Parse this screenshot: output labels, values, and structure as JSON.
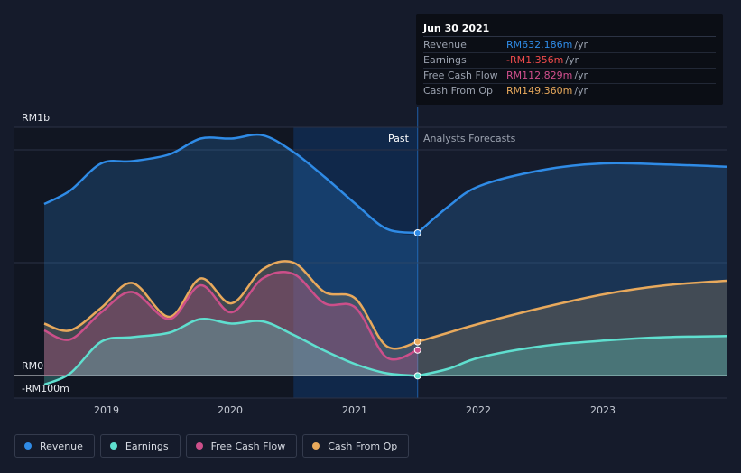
{
  "tooltip": {
    "date": "Jun 30 2021",
    "rows": [
      {
        "label": "Revenue",
        "value": "RM632.186m",
        "unit": "/yr",
        "color": "#2f8be6"
      },
      {
        "label": "Earnings",
        "value": "-RM1.356m",
        "unit": "/yr",
        "color": "#ef4b4b"
      },
      {
        "label": "Free Cash Flow",
        "value": "RM112.829m",
        "unit": "/yr",
        "color": "#d04f8c"
      },
      {
        "label": "Cash From Op",
        "value": "RM149.360m",
        "unit": "/yr",
        "color": "#e8a95c"
      }
    ]
  },
  "regions": {
    "past": "Past",
    "forecast": "Analysts Forecasts"
  },
  "legend": [
    {
      "label": "Revenue",
      "color": "#2f8be6"
    },
    {
      "label": "Earnings",
      "color": "#5fdfcf"
    },
    {
      "label": "Free Cash Flow",
      "color": "#cc4f8a"
    },
    {
      "label": "Cash From Op",
      "color": "#e8a95c"
    }
  ],
  "chart_data": {
    "type": "area",
    "y_tick_labels": [
      "RM1b",
      "RM0",
      "-RM100m"
    ],
    "x_tick_labels": [
      "2019",
      "2020",
      "2021",
      "2022",
      "2023"
    ],
    "ylim": [
      -100,
      1100
    ],
    "xlim": [
      2018.25,
      2023.99
    ],
    "present_x": 2021.5,
    "highlight_start_x": 2020.5,
    "series": [
      {
        "name": "Revenue",
        "color": "#2f8be6",
        "x": [
          2018.49,
          2018.7,
          2018.95,
          2019.2,
          2019.5,
          2019.75,
          2020.0,
          2020.25,
          2020.5,
          2020.75,
          2021.0,
          2021.25,
          2021.5,
          2021.75,
          2022.0,
          2022.5,
          2023.0,
          2023.5,
          2023.99
        ],
        "y": [
          760,
          820,
          940,
          950,
          980,
          1050,
          1050,
          1065,
          990,
          880,
          760,
          650,
          632,
          750,
          840,
          910,
          940,
          935,
          925
        ]
      },
      {
        "name": "Earnings",
        "color": "#5fdfcf",
        "x": [
          2018.49,
          2018.7,
          2018.95,
          2019.2,
          2019.5,
          2019.75,
          2020.0,
          2020.25,
          2020.5,
          2020.75,
          2021.0,
          2021.25,
          2021.5,
          2021.75,
          2022.0,
          2022.5,
          2023.0,
          2023.5,
          2023.99
        ],
        "y": [
          -40,
          10,
          150,
          170,
          190,
          250,
          230,
          240,
          180,
          110,
          50,
          10,
          -1.356,
          30,
          80,
          130,
          155,
          170,
          175
        ]
      },
      {
        "name": "Free Cash Flow",
        "color": "#cc4f8a",
        "x": [
          2018.49,
          2018.7,
          2018.95,
          2019.2,
          2019.5,
          2019.75,
          2020.0,
          2020.25,
          2020.5,
          2020.75,
          2021.0,
          2021.25,
          2021.5
        ],
        "y": [
          200,
          160,
          280,
          370,
          250,
          400,
          280,
          430,
          450,
          320,
          300,
          80,
          112.829
        ]
      },
      {
        "name": "Cash From Op",
        "color": "#e8a95c",
        "x": [
          2018.49,
          2018.7,
          2018.95,
          2019.2,
          2019.5,
          2019.75,
          2020.0,
          2020.25,
          2020.5,
          2020.75,
          2021.0,
          2021.25,
          2021.5,
          2021.75,
          2022.0,
          2022.5,
          2023.0,
          2023.5,
          2023.99
        ],
        "y": [
          230,
          200,
          300,
          410,
          260,
          430,
          320,
          470,
          500,
          370,
          340,
          130,
          149.36,
          190,
          230,
          300,
          360,
          400,
          420
        ]
      }
    ]
  }
}
